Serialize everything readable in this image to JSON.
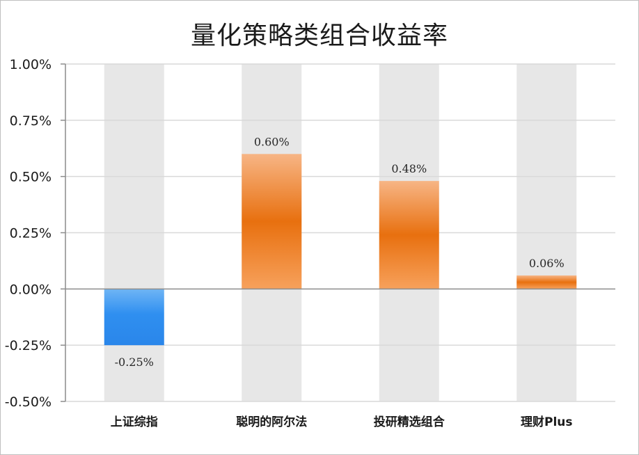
{
  "chart_data": {
    "type": "bar",
    "title": "量化策略类组合收益率",
    "categories": [
      "上证综指",
      "聪明的阿尔法",
      "投研精选组合",
      "理财Plus"
    ],
    "values": [
      -0.25,
      0.6,
      0.48,
      0.06
    ],
    "value_labels": [
      "-0.25%",
      "0.60%",
      "0.48%",
      "0.06%"
    ],
    "yticks": [
      1.0,
      0.75,
      0.5,
      0.25,
      0.0,
      -0.25,
      -0.5
    ],
    "ytick_labels": [
      "1.00%",
      "0.75%",
      "0.50%",
      "0.25%",
      "0.00%",
      "-0.25%",
      "-0.50%"
    ],
    "ylim": [
      -0.5,
      1.0
    ],
    "grid": true,
    "colors": {
      "negative": "#2f8ff0",
      "positive": "#ee7a1e",
      "column_background": "#e7e7e7",
      "gridline": "#d9d9d9"
    }
  }
}
